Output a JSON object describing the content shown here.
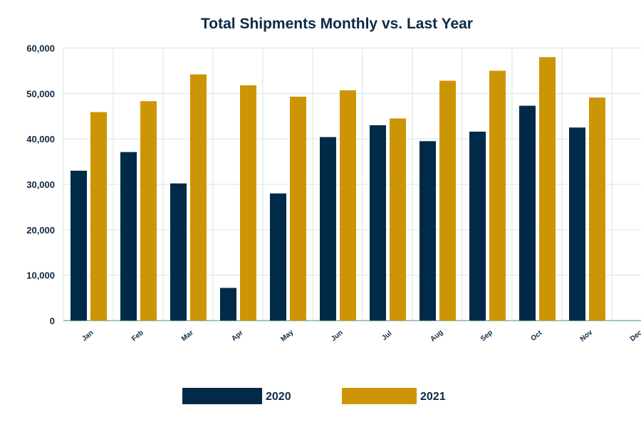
{
  "chart_data": {
    "type": "bar",
    "title": "Total Shipments Monthly vs. Last Year",
    "xlabel": "",
    "ylabel": "",
    "ylim": [
      0,
      60000
    ],
    "yticks": [
      0,
      10000,
      20000,
      30000,
      40000,
      50000,
      60000
    ],
    "ytick_labels": [
      "0",
      "10,000",
      "20,000",
      "30,000",
      "40,000",
      "50,000",
      "60,000"
    ],
    "grid": true,
    "legend_placement": "bottom",
    "categories": [
      "Jan",
      "Feb",
      "Mar",
      "Apr",
      "May",
      "Jun",
      "Jul",
      "Aug",
      "Sep",
      "Oct",
      "Nov",
      "Dec"
    ],
    "series": [
      {
        "name": "2020",
        "color": "#002a48",
        "values": [
          33000,
          37100,
          30200,
          7200,
          28000,
          40400,
          43000,
          39500,
          41600,
          47300,
          42500,
          null
        ]
      },
      {
        "name": "2021",
        "color": "#cc9505",
        "values": [
          45900,
          48300,
          54200,
          51800,
          49300,
          50700,
          44500,
          52800,
          55000,
          58000,
          49100,
          null
        ]
      }
    ]
  }
}
